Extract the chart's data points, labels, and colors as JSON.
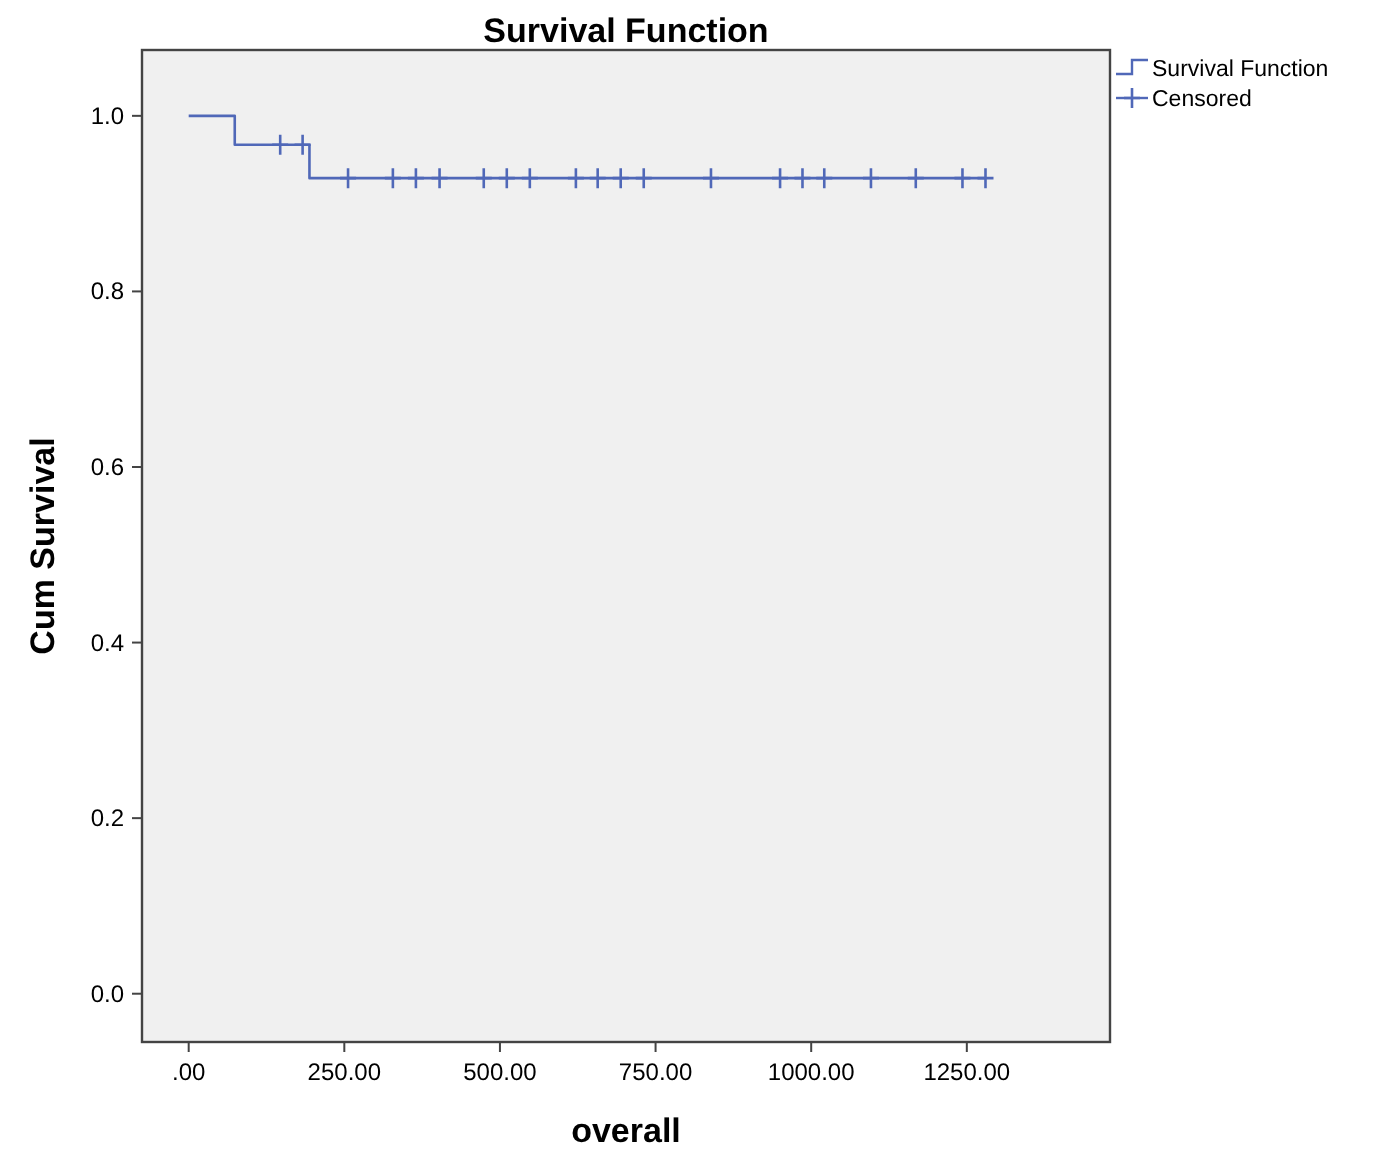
{
  "chart_data": {
    "type": "step",
    "title": "Survival Function",
    "xlabel": "overall",
    "ylabel": "Cum Survival",
    "xlim": [
      -75,
      1480
    ],
    "ylim": [
      -0.055,
      1.075
    ],
    "xticks": [
      {
        "value": 0,
        "label": ".00"
      },
      {
        "value": 250,
        "label": "250.00"
      },
      {
        "value": 500,
        "label": "500.00"
      },
      {
        "value": 750,
        "label": "750.00"
      },
      {
        "value": 1000,
        "label": "1000.00"
      },
      {
        "value": 1250,
        "label": "1250.00"
      }
    ],
    "yticks": [
      {
        "value": 0,
        "label": "0.0"
      },
      {
        "value": 0.2,
        "label": "0.2"
      },
      {
        "value": 0.4,
        "label": "0.4"
      },
      {
        "value": 0.6,
        "label": "0.6"
      },
      {
        "value": 0.8,
        "label": "0.8"
      },
      {
        "value": 1,
        "label": "1.0"
      }
    ],
    "grid": false,
    "legend": "top right",
    "line_style": "solid",
    "series": [
      {
        "name": "Survival Function",
        "color": "#5068b8",
        "marker": "none",
        "x": [
          0,
          74,
          194,
          1280
        ],
        "values": [
          1,
          0.967,
          0.929,
          0.929
        ]
      },
      {
        "name": "Censored",
        "type": "scatter",
        "color": "#5068b8",
        "marker": "cross",
        "x": [
          147,
          183,
          256,
          328,
          365,
          403,
          474,
          511,
          548,
          622,
          657,
          694,
          731,
          839,
          950,
          986,
          1021,
          1096,
          1168,
          1243,
          1280
        ],
        "values": [
          0.967,
          0.967,
          0.929,
          0.929,
          0.929,
          0.929,
          0.929,
          0.929,
          0.929,
          0.929,
          0.929,
          0.929,
          0.929,
          0.929,
          0.929,
          0.929,
          0.929,
          0.929,
          0.929,
          0.929,
          0.929
        ]
      }
    ]
  }
}
